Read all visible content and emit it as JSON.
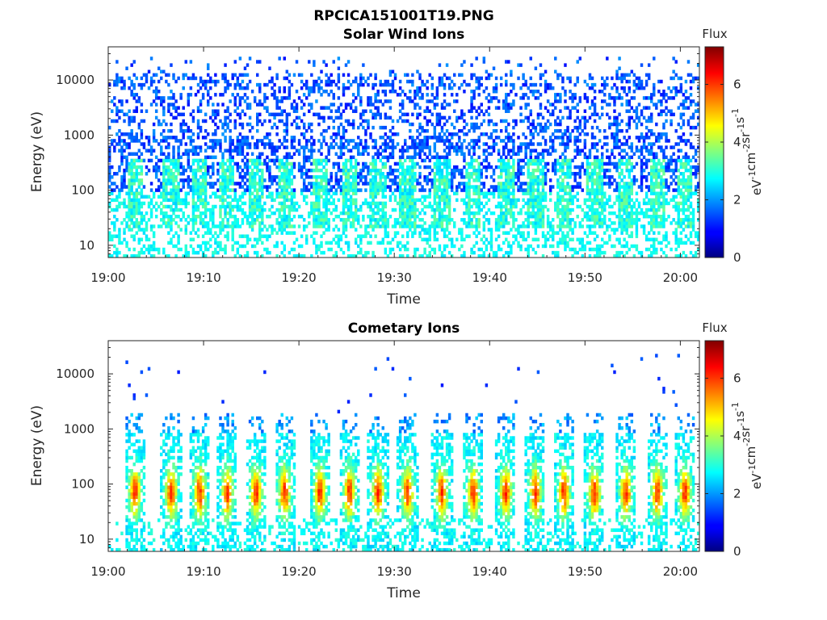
{
  "figure_title": "RPCICA151001T19.PNG",
  "chart_data": [
    {
      "type": "heatmap",
      "title": "Solar Wind Ions",
      "xlabel": "Time",
      "ylabel": "Energy (eV)",
      "x_range": [
        "19:00",
        "20:02"
      ],
      "y_range": [
        6,
        40000
      ],
      "y_scale": "log",
      "x_ticks": [
        "19:00",
        "19:10",
        "19:20",
        "19:30",
        "19:40",
        "19:50",
        "20:00"
      ],
      "y_ticks": [
        "10",
        "100",
        "1000",
        "10000"
      ],
      "colorbar": {
        "title": "Flux",
        "label": "eV-1cm-2sr-1s-1",
        "range": [
          0,
          7.3
        ],
        "ticks": [
          "0",
          "2",
          "4",
          "6"
        ],
        "colormap": "jet"
      },
      "pulse_times_min": [
        2.8,
        6.6,
        9.6,
        12.5,
        15.5,
        18.5,
        22.2,
        25.3,
        28.3,
        31.4,
        35.0,
        38.3,
        41.7,
        44.8,
        47.8,
        51.0,
        54.3,
        57.6,
        60.5
      ],
      "pattern": "sparse low-flux counts (about 1-2) across 100-30000 eV; flux about 2.5-3.5 near 20-300 eV at each pulse time"
    },
    {
      "type": "heatmap",
      "title": "Cometary Ions",
      "xlabel": "Time",
      "ylabel": "Energy (eV)",
      "x_range": [
        "19:00",
        "20:02"
      ],
      "y_range": [
        6,
        40000
      ],
      "y_scale": "log",
      "x_ticks": [
        "19:00",
        "19:10",
        "19:20",
        "19:30",
        "19:40",
        "19:50",
        "20:00"
      ],
      "y_ticks": [
        "10",
        "100",
        "1000",
        "10000"
      ],
      "colorbar": {
        "title": "Flux",
        "label": "eV-1cm-2sr-1s-1",
        "range": [
          0,
          7.3
        ],
        "ticks": [
          "0",
          "2",
          "4",
          "6"
        ],
        "colormap": "jet"
      },
      "pulse_times_min": [
        2.8,
        6.6,
        9.6,
        12.5,
        15.5,
        18.5,
        22.2,
        25.3,
        28.3,
        31.4,
        35.0,
        38.3,
        41.7,
        44.8,
        47.8,
        51.0,
        54.3,
        57.6,
        60.5
      ],
      "pattern": "periodic bursts peaking about 5-6 near 30-150 eV; sparse points up to about 20000 eV"
    }
  ]
}
